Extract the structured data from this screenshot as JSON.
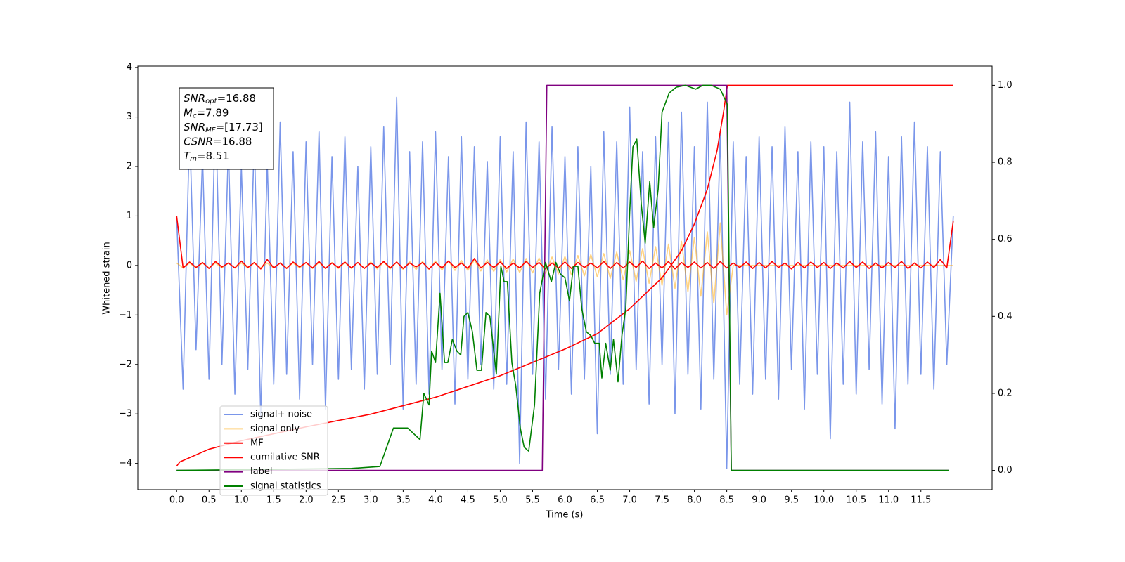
{
  "chart_data": {
    "type": "line",
    "xlabel": "Time (s)",
    "ylabel": "Whitened strain",
    "xlim": [
      -0.6,
      12.6
    ],
    "ylim": [
      -4.53,
      4.03
    ],
    "y2lim": [
      -0.05,
      1.05
    ],
    "grid": false,
    "legend": "lower left",
    "xticks": [
      {
        "value": 0,
        "label": "0.0"
      },
      {
        "value": 0.5,
        "label": "0.5"
      },
      {
        "value": 1,
        "label": "1.0"
      },
      {
        "value": 1.5,
        "label": "1.5"
      },
      {
        "value": 2,
        "label": "2.0"
      },
      {
        "value": 2.5,
        "label": "2.5"
      },
      {
        "value": 3,
        "label": "3.0"
      },
      {
        "value": 3.5,
        "label": "3.5"
      },
      {
        "value": 4,
        "label": "4.0"
      },
      {
        "value": 4.5,
        "label": "4.5"
      },
      {
        "value": 5,
        "label": "5.0"
      },
      {
        "value": 5.5,
        "label": "5.5"
      },
      {
        "value": 6,
        "label": "6.0"
      },
      {
        "value": 6.5,
        "label": "6.5"
      },
      {
        "value": 7,
        "label": "7.0"
      },
      {
        "value": 7.5,
        "label": "7.5"
      },
      {
        "value": 8,
        "label": "8.0"
      },
      {
        "value": 8.5,
        "label": "8.5"
      },
      {
        "value": 9,
        "label": "9.0"
      },
      {
        "value": 9.5,
        "label": "9.5"
      },
      {
        "value": 10,
        "label": "10.0"
      },
      {
        "value": 10.5,
        "label": "10.5"
      },
      {
        "value": 11,
        "label": "11.0"
      },
      {
        "value": 11.5,
        "label": "11.5"
      }
    ],
    "yticks": [
      {
        "value": -4,
        "label": "−4"
      },
      {
        "value": -3,
        "label": "−3"
      },
      {
        "value": -2,
        "label": "−2"
      },
      {
        "value": -1,
        "label": "−1"
      },
      0,
      1,
      2,
      3,
      4
    ],
    "y2ticks": [
      {
        "value": 0,
        "label": "0.0"
      },
      {
        "value": 0.2,
        "label": "0.2"
      },
      {
        "value": 0.4,
        "label": "0.4"
      },
      {
        "value": 0.6,
        "label": "0.6"
      },
      {
        "value": 0.8,
        "label": "0.8"
      },
      {
        "value": 1,
        "label": "1.0"
      }
    ],
    "annotation": [
      {
        "main": "SNR",
        "sub": "opt",
        "rest": "=16.88"
      },
      {
        "main": "M",
        "sub": "c",
        "rest": "=7.89"
      },
      {
        "main": "SNR",
        "sub": "MF",
        "rest": "=[17.73]"
      },
      {
        "main": "CSNR",
        "rest": "=16.88"
      },
      {
        "main": "T",
        "sub": "m",
        "rest": "=8.51"
      }
    ],
    "x": [
      0,
      0.1,
      0.2,
      0.3,
      0.4,
      0.5,
      0.6,
      0.7,
      0.8,
      0.9,
      1,
      1.1,
      1.2,
      1.3,
      1.4,
      1.5,
      1.6,
      1.7,
      1.8,
      1.9,
      2,
      2.1,
      2.2,
      2.3,
      2.4,
      2.5,
      2.6,
      2.7,
      2.8,
      2.9,
      3,
      3.1,
      3.2,
      3.3,
      3.4,
      3.5,
      3.6,
      3.7,
      3.8,
      3.9,
      4,
      4.1,
      4.2,
      4.3,
      4.4,
      4.5,
      4.6,
      4.7,
      4.8,
      4.9,
      5,
      5.1,
      5.2,
      5.3,
      5.4,
      5.5,
      5.6,
      5.7,
      5.8,
      5.9,
      6,
      6.1,
      6.2,
      6.3,
      6.4,
      6.5,
      6.6,
      6.7,
      6.8,
      6.9,
      7,
      7.1,
      7.2,
      7.3,
      7.4,
      7.5,
      7.6,
      7.7,
      7.8,
      7.9,
      8,
      8.1,
      8.2,
      8.3,
      8.4,
      8.5,
      8.6,
      8.7,
      8.8,
      8.9,
      9,
      9.1,
      9.2,
      9.3,
      9.4,
      9.5,
      9.6,
      9.7,
      9.8,
      9.9,
      10,
      10.1,
      10.2,
      10.3,
      10.4,
      10.5,
      10.6,
      10.7,
      10.8,
      10.9,
      11,
      11.1,
      11.2,
      11.3,
      11.4,
      11.5,
      11.6,
      11.7,
      11.8,
      11.9,
      12
    ],
    "series": [
      {
        "name": "signal+ noise",
        "color": "#4169e1",
        "alpha": 0.7,
        "values": [
          1.0,
          -2.5,
          2.8,
          -1.7,
          2.2,
          -2.3,
          3.2,
          -2.0,
          2.4,
          -2.6,
          2.0,
          -2.1,
          2.6,
          -3.1,
          2.1,
          -2.4,
          2.9,
          -2.2,
          2.3,
          -2.7,
          2.5,
          -2.0,
          2.7,
          -2.9,
          2.2,
          -2.3,
          2.6,
          -2.1,
          2.0,
          -2.5,
          2.4,
          -2.2,
          2.8,
          -2.0,
          3.4,
          -2.9,
          2.3,
          -2.4,
          2.5,
          -2.6,
          2.7,
          -2.1,
          2.2,
          -2.8,
          2.6,
          -2.3,
          2.4,
          -2.0,
          2.1,
          -2.5,
          2.6,
          -2.4,
          2.3,
          -4.0,
          2.9,
          -2.2,
          2.5,
          -2.7,
          2.8,
          -2.1,
          2.2,
          -2.6,
          2.4,
          -2.3,
          2.0,
          -3.4,
          2.7,
          -2.2,
          2.5,
          -2.4,
          3.2,
          -2.1,
          2.3,
          -2.8,
          2.6,
          -2.0,
          2.9,
          -3.0,
          3.1,
          -2.2,
          2.4,
          -2.9,
          3.3,
          -2.3,
          2.7,
          -4.1,
          2.5,
          -2.4,
          2.2,
          -2.6,
          2.6,
          -2.3,
          2.4,
          -2.7,
          2.8,
          -2.1,
          2.3,
          -2.9,
          2.5,
          -2.2,
          2.4,
          -3.5,
          2.3,
          -2.4,
          3.3,
          -2.6,
          2.5,
          -2.1,
          2.7,
          -2.8,
          2.2,
          -3.3,
          2.6,
          -2.4,
          2.9,
          -2.2,
          2.4,
          -2.5,
          2.3,
          -2.0,
          1.0
        ]
      },
      {
        "name": "signal only",
        "color": "#ffa500",
        "alpha": 0.5,
        "values": [
          0.05,
          -0.05,
          0.05,
          -0.05,
          0.05,
          -0.05,
          0.05,
          -0.05,
          0.05,
          -0.05,
          0.05,
          -0.05,
          0.05,
          -0.05,
          0.05,
          -0.05,
          0.05,
          -0.05,
          0.05,
          -0.05,
          0.06,
          -0.06,
          0.06,
          -0.06,
          0.06,
          -0.06,
          0.06,
          -0.06,
          0.06,
          -0.06,
          0.07,
          -0.07,
          0.07,
          -0.07,
          0.07,
          -0.08,
          0.08,
          -0.08,
          0.08,
          -0.08,
          0.09,
          -0.09,
          0.09,
          -0.1,
          0.1,
          -0.1,
          0.11,
          -0.11,
          0.11,
          -0.12,
          0.12,
          -0.13,
          0.13,
          -0.14,
          0.14,
          -0.15,
          0.15,
          -0.16,
          0.17,
          -0.17,
          0.18,
          -0.19,
          0.2,
          -0.21,
          0.22,
          -0.23,
          0.24,
          -0.26,
          0.27,
          -0.29,
          0.3,
          -0.32,
          0.34,
          -0.36,
          0.38,
          -0.4,
          0.43,
          -0.46,
          0.49,
          -0.53,
          0.57,
          -0.62,
          0.68,
          -0.76,
          0.86,
          -1.0,
          0,
          0,
          0,
          0,
          0,
          0,
          0,
          0,
          0,
          0,
          0,
          0,
          0,
          0,
          0,
          0,
          0,
          0,
          0,
          0,
          0,
          0,
          0,
          0,
          0,
          0,
          0,
          0,
          0,
          0,
          0,
          0,
          0,
          0,
          0
        ]
      },
      {
        "name": "MF",
        "color": "#ff0000",
        "alpha": 1,
        "values": [
          1.0,
          -0.05,
          0.07,
          -0.04,
          0.06,
          -0.06,
          0.08,
          -0.03,
          0.05,
          -0.05,
          0.09,
          -0.04,
          0.06,
          -0.07,
          0.12,
          -0.05,
          0.05,
          -0.06,
          0.07,
          -0.03,
          0.06,
          -0.05,
          0.08,
          -0.06,
          0.05,
          -0.04,
          0.07,
          -0.05,
          0.06,
          -0.06,
          0.05,
          -0.04,
          0.08,
          -0.05,
          0.07,
          -0.06,
          0.05,
          -0.03,
          0.06,
          -0.07,
          0.06,
          -0.05,
          0.09,
          -0.04,
          0.05,
          -0.06,
          0.14,
          -0.05,
          0.06,
          -0.04,
          0.07,
          -0.06,
          0.05,
          -0.05,
          0.08,
          -0.04,
          0.06,
          -0.07,
          0.05,
          -0.05,
          0.07,
          -0.06,
          0.06,
          -0.04,
          0.05,
          -0.05,
          0.08,
          -0.06,
          0.06,
          -0.05,
          0.07,
          -0.04,
          0.09,
          -0.06,
          0.05,
          -0.05,
          0.08,
          -0.07,
          0.06,
          -0.04,
          0.07,
          -0.05,
          0.06,
          -0.06,
          0.08,
          -0.05,
          0.05,
          -0.04,
          0.07,
          -0.06,
          0.06,
          -0.05,
          0.08,
          -0.04,
          0.05,
          -0.07,
          0.06,
          -0.05,
          0.07,
          -0.04,
          0.06,
          -0.06,
          0.05,
          -0.05,
          0.08,
          -0.04,
          0.07,
          -0.06,
          0.05,
          -0.05,
          0.06,
          -0.04,
          0.08,
          -0.06,
          0.05,
          -0.05,
          0.07,
          -0.04,
          0.12,
          -0.05,
          0.9
        ]
      },
      {
        "name": "cumilative SNR",
        "color": "#ff0000",
        "alpha": 1,
        "axis": "y2",
        "x": [
          0,
          0.05,
          0.5,
          1,
          2,
          3,
          4,
          5,
          6,
          6.5,
          7,
          7.5,
          7.8,
          8,
          8.2,
          8.35,
          8.45,
          8.51,
          12
        ],
        "values": [
          0.011,
          0.022,
          0.055,
          0.077,
          0.113,
          0.146,
          0.19,
          0.246,
          0.315,
          0.355,
          0.42,
          0.5,
          0.57,
          0.64,
          0.73,
          0.83,
          0.93,
          1.0,
          1.0
        ]
      },
      {
        "name": "label",
        "color": "#800080",
        "alpha": 1,
        "axis": "y2",
        "x": [
          0,
          5.65,
          5.72,
          8.5,
          8.57,
          11.93
        ],
        "values": [
          0,
          0,
          1,
          1,
          0,
          0
        ]
      },
      {
        "name": "signal statistics",
        "color": "#008000",
        "alpha": 1,
        "axis": "y2",
        "x": [
          0,
          2.7,
          3.14,
          3.35,
          3.57,
          3.76,
          3.82,
          3.9,
          3.94,
          4.0,
          4.07,
          4.14,
          4.19,
          4.26,
          4.33,
          4.39,
          4.44,
          4.5,
          4.57,
          4.64,
          4.71,
          4.78,
          4.84,
          4.94,
          5.01,
          5.06,
          5.11,
          5.18,
          5.24,
          5.31,
          5.37,
          5.44,
          5.53,
          5.61,
          5.7,
          5.79,
          5.86,
          5.93,
          6.0,
          6.07,
          6.13,
          6.2,
          6.26,
          6.33,
          6.4,
          6.46,
          6.53,
          6.57,
          6.63,
          6.7,
          6.75,
          6.82,
          6.88,
          6.94,
          7.0,
          7.05,
          7.11,
          7.18,
          7.24,
          7.31,
          7.37,
          7.44,
          7.5,
          7.61,
          7.72,
          7.86,
          8.02,
          8.13,
          8.26,
          8.4,
          8.51,
          8.57,
          11.93
        ],
        "values": [
          0,
          0.005,
          0.01,
          0.11,
          0.11,
          0.08,
          0.2,
          0.17,
          0.31,
          0.28,
          0.46,
          0.28,
          0.28,
          0.34,
          0.31,
          0.3,
          0.4,
          0.41,
          0.36,
          0.26,
          0.26,
          0.41,
          0.4,
          0.25,
          0.53,
          0.49,
          0.49,
          0.28,
          0.22,
          0.11,
          0.06,
          0.05,
          0.17,
          0.46,
          0.54,
          0.49,
          0.54,
          0.51,
          0.5,
          0.44,
          0.53,
          0.53,
          0.42,
          0.36,
          0.35,
          0.33,
          0.33,
          0.24,
          0.33,
          0.26,
          0.34,
          0.23,
          0.35,
          0.42,
          0.67,
          0.84,
          0.86,
          0.69,
          0.59,
          0.75,
          0.63,
          0.73,
          0.93,
          0.98,
          0.995,
          1.0,
          0.99,
          1.0,
          1.0,
          0.99,
          0.95,
          0,
          0
        ]
      }
    ]
  }
}
